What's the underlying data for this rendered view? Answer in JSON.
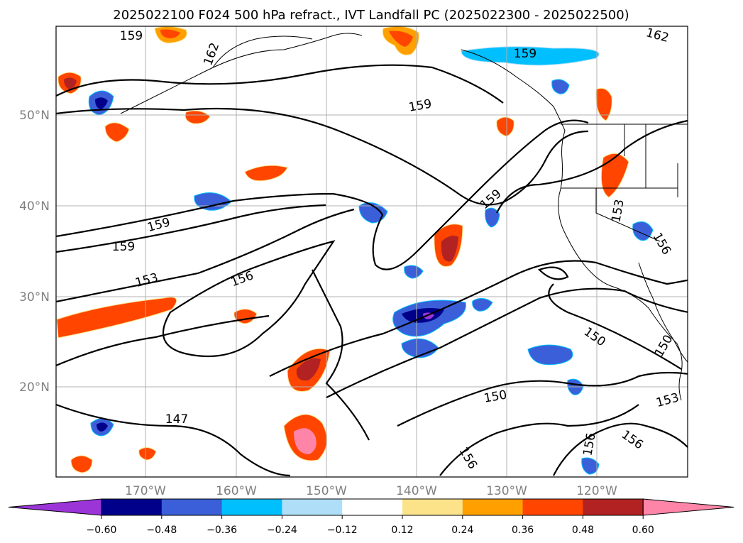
{
  "title": "2025022100 F024 500 hPa refract., IVT Landfall PC (2025022300 - 2025022500)",
  "lat_labels": [
    "50°N",
    "40°N",
    "30°N",
    "20°N"
  ],
  "lon_labels": [
    "170°W",
    "160°W",
    "150°W",
    "140°W",
    "130°W",
    "120°W"
  ],
  "contour_labels": [
    "159",
    "162",
    "159",
    "159",
    "162",
    "159",
    "153",
    "156",
    "159",
    "159",
    "153",
    "156",
    "150",
    "150",
    "150",
    "153",
    "147",
    "156",
    "156",
    "156"
  ],
  "colorbar": {
    "ticks": [
      "−0.60",
      "−0.48",
      "−0.36",
      "−0.24",
      "−0.12",
      "0.12",
      "0.24",
      "0.36",
      "0.48",
      "0.60"
    ],
    "colors": [
      "#9b35d8",
      "#00008b",
      "#3a5fd8",
      "#00bfff",
      "#afdff8",
      "#ffffff",
      "#fce38a",
      "#ff9f00",
      "#ff4500",
      "#b22222",
      "#ff85a8"
    ]
  },
  "colors": {
    "negative_fill": "#3a5fd8",
    "positive_fill": "#ff4500",
    "coast": "#000000",
    "grid": "#b0b0b0"
  }
}
